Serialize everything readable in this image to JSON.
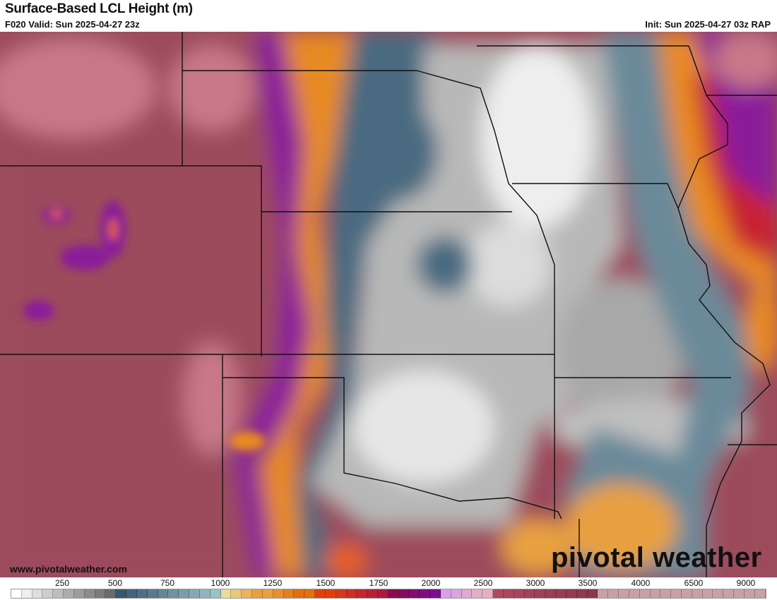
{
  "header": {
    "title": "Surface-Based LCL Height (m)",
    "valid": "F020 Valid: Sun 2025-04-27 23z",
    "init": "Init: Sun 2025-04-27 03z RAP"
  },
  "footer": {
    "url": "www.pivotalweather.com",
    "logo": "pivotal weather"
  },
  "colorbar": {
    "labels": [
      "250",
      "500",
      "750",
      "1000",
      "1250",
      "1500",
      "1750",
      "2000",
      "2500",
      "3000",
      "3500",
      "4000",
      "6500",
      "9000"
    ],
    "anchor_colors": [
      "#ffffff",
      "#6a6a6a",
      "#3a5670",
      "#9cc0c8",
      "#eadc96",
      "#e8a040",
      "#e07010",
      "#e04010",
      "#b01840",
      "#8a0a50",
      "#7a1090",
      "#d8a0e8",
      "#e8b0bc",
      "#b04860",
      "#8a3848",
      "#c8a0a8"
    ],
    "anchor_counts": [
      10,
      0,
      10,
      0,
      4,
      4,
      2,
      6,
      0,
      5,
      0,
      5,
      0,
      10,
      0,
      6
    ]
  },
  "map": {
    "colors": {
      "west": "#9c4c5c",
      "pink": "#c87888",
      "purple": "#8a1a9a",
      "orange": "#e88a20",
      "red": "#c82030",
      "blue": "#4a6a80",
      "lightblue": "#8ab0bc",
      "grey": "#9a9a9a",
      "lightgrey": "#e0e0e0",
      "white": "#f4f4f4"
    }
  }
}
